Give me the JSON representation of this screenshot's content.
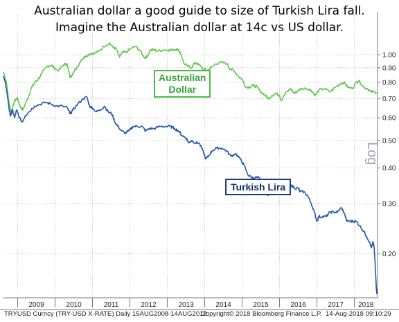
{
  "title_line1": "Australian dollar a good guide to size of Turkish Lira fall.",
  "title_line2": "Imagine the Australian dollar at 14c vs US dollar.",
  "colors": {
    "aud": "#5cc84a",
    "try": "#2457a8",
    "grid": "#b7b7b7",
    "axis": "#777777"
  },
  "chart_data": {
    "type": "line",
    "scale": "log",
    "ylim": [
      0.14,
      1.1
    ],
    "y_ticks": [
      0.2,
      0.3,
      0.4,
      0.5,
      0.6,
      0.7,
      0.8,
      0.9,
      1.0
    ],
    "y_tick_labels": [
      "0.20",
      "0.30",
      "0.40",
      "0.50",
      "0.60",
      "0.70",
      "0.80",
      "0.90",
      "1.00"
    ],
    "y_axis_label": "Log",
    "xlim": [
      2008.62,
      2018.62
    ],
    "x_ticks": [
      "2009",
      "2010",
      "2011",
      "2012",
      "2013",
      "2014",
      "2015",
      "2016",
      "2017",
      "2018"
    ],
    "grid": true,
    "series": [
      {
        "name": "Australian Dollar",
        "color": "#5cc84a",
        "points": [
          [
            2008.62,
            0.87
          ],
          [
            2008.7,
            0.8
          ],
          [
            2008.76,
            0.69
          ],
          [
            2008.8,
            0.65
          ],
          [
            2008.84,
            0.62
          ],
          [
            2008.9,
            0.68
          ],
          [
            2008.96,
            0.7
          ],
          [
            2009.0,
            0.7
          ],
          [
            2009.06,
            0.66
          ],
          [
            2009.14,
            0.64
          ],
          [
            2009.22,
            0.68
          ],
          [
            2009.3,
            0.72
          ],
          [
            2009.38,
            0.77
          ],
          [
            2009.46,
            0.8
          ],
          [
            2009.55,
            0.82
          ],
          [
            2009.65,
            0.86
          ],
          [
            2009.78,
            0.91
          ],
          [
            2009.9,
            0.92
          ],
          [
            2009.97,
            0.9
          ],
          [
            2010.1,
            0.88
          ],
          [
            2010.22,
            0.92
          ],
          [
            2010.32,
            0.93
          ],
          [
            2010.4,
            0.83
          ],
          [
            2010.47,
            0.86
          ],
          [
            2010.58,
            0.9
          ],
          [
            2010.7,
            0.96
          ],
          [
            2010.82,
            0.99
          ],
          [
            2010.95,
            1.01
          ],
          [
            2011.05,
            1.01
          ],
          [
            2011.18,
            1.03
          ],
          [
            2011.3,
            1.07
          ],
          [
            2011.45,
            1.1
          ],
          [
            2011.55,
            1.06
          ],
          [
            2011.63,
            1.05
          ],
          [
            2011.72,
            0.98
          ],
          [
            2011.8,
            1.02
          ],
          [
            2011.9,
            1.02
          ],
          [
            2012.02,
            1.05
          ],
          [
            2012.15,
            1.07
          ],
          [
            2012.28,
            1.03
          ],
          [
            2012.38,
            0.98
          ],
          [
            2012.45,
            0.98
          ],
          [
            2012.55,
            1.04
          ],
          [
            2012.65,
            1.04
          ],
          [
            2012.75,
            1.03
          ],
          [
            2012.9,
            1.04
          ],
          [
            2013.05,
            1.04
          ],
          [
            2013.15,
            1.04
          ],
          [
            2013.25,
            1.05
          ],
          [
            2013.35,
            1.02
          ],
          [
            2013.45,
            0.93
          ],
          [
            2013.55,
            0.91
          ],
          [
            2013.65,
            0.9
          ],
          [
            2013.75,
            0.94
          ],
          [
            2013.85,
            0.92
          ],
          [
            2013.97,
            0.89
          ],
          [
            2014.07,
            0.88
          ],
          [
            2014.17,
            0.9
          ],
          [
            2014.3,
            0.93
          ],
          [
            2014.45,
            0.94
          ],
          [
            2014.6,
            0.93
          ],
          [
            2014.68,
            0.89
          ],
          [
            2014.78,
            0.88
          ],
          [
            2014.9,
            0.84
          ],
          [
            2015.0,
            0.82
          ],
          [
            2015.1,
            0.77
          ],
          [
            2015.2,
            0.77
          ],
          [
            2015.3,
            0.78
          ],
          [
            2015.4,
            0.77
          ],
          [
            2015.5,
            0.74
          ],
          [
            2015.62,
            0.72
          ],
          [
            2015.7,
            0.7
          ],
          [
            2015.8,
            0.72
          ],
          [
            2015.92,
            0.73
          ],
          [
            2016.0,
            0.72
          ],
          [
            2016.05,
            0.69
          ],
          [
            2016.15,
            0.73
          ],
          [
            2016.3,
            0.76
          ],
          [
            2016.4,
            0.73
          ],
          [
            2016.5,
            0.75
          ],
          [
            2016.6,
            0.76
          ],
          [
            2016.75,
            0.76
          ],
          [
            2016.85,
            0.75
          ],
          [
            2016.95,
            0.72
          ],
          [
            2017.05,
            0.75
          ],
          [
            2017.2,
            0.76
          ],
          [
            2017.35,
            0.74
          ],
          [
            2017.5,
            0.77
          ],
          [
            2017.62,
            0.79
          ],
          [
            2017.72,
            0.8
          ],
          [
            2017.82,
            0.77
          ],
          [
            2017.95,
            0.76
          ],
          [
            2018.05,
            0.8
          ],
          [
            2018.12,
            0.81
          ],
          [
            2018.25,
            0.77
          ],
          [
            2018.35,
            0.76
          ],
          [
            2018.45,
            0.74
          ],
          [
            2018.55,
            0.74
          ],
          [
            2018.62,
            0.73
          ]
        ]
      },
      {
        "name": "Turkish Lira",
        "color": "#2457a8",
        "points": [
          [
            2008.62,
            0.84
          ],
          [
            2008.7,
            0.76
          ],
          [
            2008.76,
            0.66
          ],
          [
            2008.8,
            0.61
          ],
          [
            2008.86,
            0.64
          ],
          [
            2008.92,
            0.6
          ],
          [
            2008.97,
            0.64
          ],
          [
            2009.05,
            0.6
          ],
          [
            2009.12,
            0.58
          ],
          [
            2009.2,
            0.61
          ],
          [
            2009.3,
            0.63
          ],
          [
            2009.45,
            0.66
          ],
          [
            2009.6,
            0.67
          ],
          [
            2009.75,
            0.68
          ],
          [
            2009.9,
            0.67
          ],
          [
            2010.05,
            0.66
          ],
          [
            2010.2,
            0.66
          ],
          [
            2010.33,
            0.65
          ],
          [
            2010.4,
            0.62
          ],
          [
            2010.48,
            0.64
          ],
          [
            2010.6,
            0.67
          ],
          [
            2010.75,
            0.7
          ],
          [
            2010.85,
            0.71
          ],
          [
            2010.92,
            0.66
          ],
          [
            2011.0,
            0.65
          ],
          [
            2011.1,
            0.63
          ],
          [
            2011.22,
            0.64
          ],
          [
            2011.32,
            0.66
          ],
          [
            2011.42,
            0.63
          ],
          [
            2011.52,
            0.62
          ],
          [
            2011.6,
            0.58
          ],
          [
            2011.68,
            0.56
          ],
          [
            2011.78,
            0.54
          ],
          [
            2011.88,
            0.53
          ],
          [
            2011.97,
            0.54
          ],
          [
            2012.08,
            0.56
          ],
          [
            2012.2,
            0.56
          ],
          [
            2012.32,
            0.56
          ],
          [
            2012.42,
            0.54
          ],
          [
            2012.52,
            0.55
          ],
          [
            2012.65,
            0.55
          ],
          [
            2012.8,
            0.56
          ],
          [
            2012.95,
            0.56
          ],
          [
            2013.08,
            0.56
          ],
          [
            2013.2,
            0.55
          ],
          [
            2013.3,
            0.54
          ],
          [
            2013.4,
            0.52
          ],
          [
            2013.5,
            0.51
          ],
          [
            2013.58,
            0.49
          ],
          [
            2013.65,
            0.5
          ],
          [
            2013.75,
            0.49
          ],
          [
            2013.85,
            0.49
          ],
          [
            2013.95,
            0.46
          ],
          [
            2014.03,
            0.43
          ],
          [
            2014.1,
            0.44
          ],
          [
            2014.2,
            0.46
          ],
          [
            2014.32,
            0.47
          ],
          [
            2014.45,
            0.47
          ],
          [
            2014.58,
            0.46
          ],
          [
            2014.7,
            0.44
          ],
          [
            2014.82,
            0.45
          ],
          [
            2014.95,
            0.43
          ],
          [
            2015.05,
            0.41
          ],
          [
            2015.15,
            0.38
          ],
          [
            2015.25,
            0.37
          ],
          [
            2015.35,
            0.37
          ],
          [
            2015.45,
            0.37
          ],
          [
            2015.55,
            0.35
          ],
          [
            2015.62,
            0.34
          ],
          [
            2015.68,
            0.32
          ],
          [
            2015.75,
            0.33
          ],
          [
            2015.85,
            0.35
          ],
          [
            2015.95,
            0.34
          ],
          [
            2016.05,
            0.33
          ],
          [
            2016.18,
            0.34
          ],
          [
            2016.3,
            0.35
          ],
          [
            2016.4,
            0.34
          ],
          [
            2016.5,
            0.34
          ],
          [
            2016.55,
            0.33
          ],
          [
            2016.65,
            0.33
          ],
          [
            2016.75,
            0.32
          ],
          [
            2016.85,
            0.3
          ],
          [
            2016.93,
            0.28
          ],
          [
            2017.0,
            0.26
          ],
          [
            2017.05,
            0.27
          ],
          [
            2017.15,
            0.27
          ],
          [
            2017.25,
            0.27
          ],
          [
            2017.35,
            0.28
          ],
          [
            2017.45,
            0.28
          ],
          [
            2017.55,
            0.28
          ],
          [
            2017.65,
            0.29
          ],
          [
            2017.72,
            0.28
          ],
          [
            2017.8,
            0.26
          ],
          [
            2017.88,
            0.26
          ],
          [
            2017.97,
            0.26
          ],
          [
            2018.05,
            0.26
          ],
          [
            2018.15,
            0.25
          ],
          [
            2018.25,
            0.24
          ],
          [
            2018.33,
            0.23
          ],
          [
            2018.4,
            0.22
          ],
          [
            2018.46,
            0.21
          ],
          [
            2018.5,
            0.22
          ],
          [
            2018.53,
            0.21
          ],
          [
            2018.55,
            0.19
          ],
          [
            2018.57,
            0.17
          ],
          [
            2018.59,
            0.15
          ],
          [
            2018.6,
            0.145
          ],
          [
            2018.62,
            0.15
          ]
        ]
      }
    ]
  },
  "labels": {
    "aud": "Australian\nDollar",
    "try": "Turkish Lira"
  },
  "footer": {
    "ticker": "TRYUSD Curncy (TRY-USD X-RATE)  Daily 15AUG2008-14AUG2018",
    "copyright": "Copyright© 2018 Bloomberg Finance L.P.",
    "timestamp": "14-Aug-2018 09:10:29"
  }
}
